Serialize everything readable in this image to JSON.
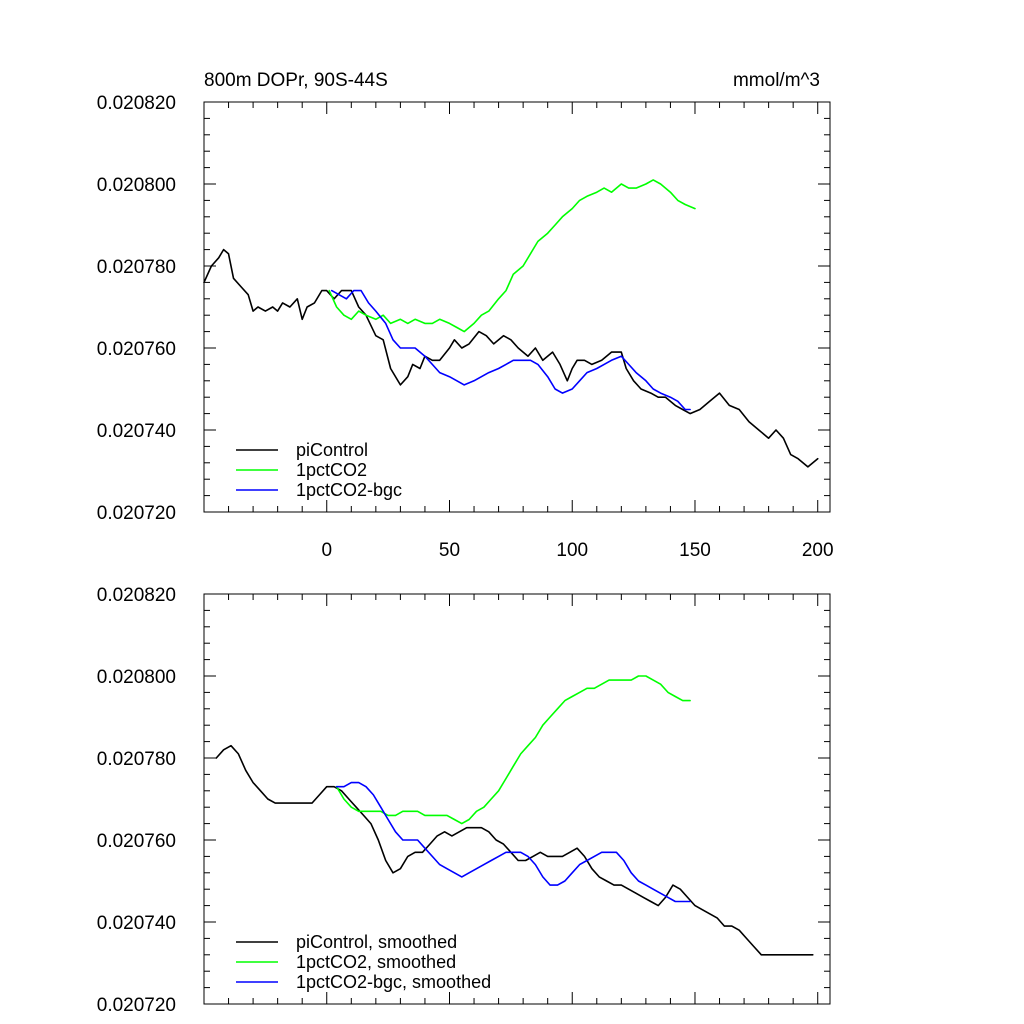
{
  "chart_data": [
    {
      "type": "line",
      "title_left": "800m DOPr, 90S-44S",
      "title_right": "mmol/m^3",
      "xlim": [
        -50,
        205
      ],
      "ylim": [
        0.02072,
        0.02082
      ],
      "x_ticks": [
        0,
        50,
        100,
        150,
        200
      ],
      "x_tick_labels": [
        "0",
        "50",
        "100",
        "150",
        "200"
      ],
      "y_ticks": [
        0.02072,
        0.02074,
        0.02076,
        0.02078,
        0.0208,
        0.02082
      ],
      "y_tick_labels": [
        "0.020720",
        "0.020740",
        "0.020760",
        "0.020780",
        "0.020800",
        "0.020820"
      ],
      "legend": [
        "piControl",
        "1pctCO2",
        "1pctCO2-bgc"
      ],
      "series": [
        {
          "name": "piControl",
          "color": "#000000",
          "x": [
            -50,
            -47,
            -44,
            -42,
            -40,
            -38,
            -35,
            -32,
            -30,
            -28,
            -25,
            -22,
            -20,
            -18,
            -15,
            -12,
            -10,
            -8,
            -5,
            -2,
            0,
            3,
            6,
            10,
            13,
            16,
            20,
            23,
            26,
            30,
            33,
            35,
            38,
            40,
            43,
            46,
            50,
            52,
            55,
            58,
            62,
            65,
            68,
            72,
            75,
            78,
            82,
            85,
            88,
            92,
            95,
            98,
            100,
            102,
            105,
            108,
            112,
            116,
            120,
            122,
            125,
            128,
            132,
            135,
            138,
            142,
            145,
            148,
            152,
            156,
            160,
            164,
            168,
            172,
            176,
            180,
            183,
            186,
            189,
            192,
            196,
            200
          ],
          "y": [
            0.020776,
            0.02078,
            0.020782,
            0.020784,
            0.020783,
            0.020777,
            0.020775,
            0.020773,
            0.020769,
            0.02077,
            0.020769,
            0.02077,
            0.020769,
            0.020771,
            0.02077,
            0.020772,
            0.020767,
            0.02077,
            0.020771,
            0.020774,
            0.020774,
            0.020772,
            0.020774,
            0.020774,
            0.02077,
            0.020768,
            0.020763,
            0.020762,
            0.020755,
            0.020751,
            0.020753,
            0.020756,
            0.020755,
            0.020758,
            0.020757,
            0.020757,
            0.02076,
            0.020762,
            0.02076,
            0.020761,
            0.020764,
            0.020763,
            0.020761,
            0.020763,
            0.020762,
            0.02076,
            0.020758,
            0.02076,
            0.020757,
            0.020759,
            0.020756,
            0.020752,
            0.020755,
            0.020757,
            0.020757,
            0.020756,
            0.020757,
            0.020759,
            0.020759,
            0.020755,
            0.020752,
            0.02075,
            0.020749,
            0.020748,
            0.020748,
            0.020746,
            0.020745,
            0.020744,
            0.020745,
            0.020747,
            0.020749,
            0.020746,
            0.020745,
            0.020742,
            0.02074,
            0.020738,
            0.02074,
            0.020738,
            0.020734,
            0.020733,
            0.020731,
            0.020733
          ]
        },
        {
          "name": "1pctCO2",
          "color": "#00ff00",
          "x": [
            1,
            4,
            7,
            10,
            13,
            16,
            20,
            23,
            26,
            30,
            33,
            36,
            40,
            43,
            46,
            50,
            53,
            56,
            60,
            63,
            66,
            70,
            73,
            76,
            80,
            83,
            86,
            90,
            93,
            96,
            100,
            103,
            106,
            110,
            113,
            116,
            120,
            123,
            126,
            130,
            133,
            136,
            140,
            143,
            146,
            150
          ],
          "y": [
            0.020774,
            0.02077,
            0.020768,
            0.020767,
            0.020769,
            0.020768,
            0.020767,
            0.020768,
            0.020766,
            0.020767,
            0.020766,
            0.020767,
            0.020766,
            0.020766,
            0.020767,
            0.020766,
            0.020765,
            0.020764,
            0.020766,
            0.020768,
            0.020769,
            0.020772,
            0.020774,
            0.020778,
            0.02078,
            0.020783,
            0.020786,
            0.020788,
            0.02079,
            0.020792,
            0.020794,
            0.020796,
            0.020797,
            0.020798,
            0.020799,
            0.020798,
            0.0208,
            0.020799,
            0.020799,
            0.0208,
            0.020801,
            0.0208,
            0.020798,
            0.020796,
            0.020795,
            0.020794
          ]
        },
        {
          "name": "1pctCO2-bgc",
          "color": "#0000ff",
          "x": [
            2,
            5,
            8,
            11,
            14,
            17,
            20,
            24,
            27,
            30,
            33,
            36,
            40,
            43,
            46,
            50,
            53,
            56,
            60,
            63,
            66,
            70,
            73,
            76,
            80,
            83,
            86,
            90,
            93,
            96,
            100,
            103,
            106,
            110,
            113,
            116,
            120,
            123,
            126,
            130,
            133,
            136,
            140,
            143,
            146,
            148
          ],
          "y": [
            0.020774,
            0.020773,
            0.020772,
            0.020774,
            0.020774,
            0.020771,
            0.020769,
            0.020766,
            0.020762,
            0.02076,
            0.02076,
            0.02076,
            0.020758,
            0.020756,
            0.020754,
            0.020753,
            0.020752,
            0.020751,
            0.020752,
            0.020753,
            0.020754,
            0.020755,
            0.020756,
            0.020757,
            0.020757,
            0.020757,
            0.020756,
            0.020753,
            0.02075,
            0.020749,
            0.02075,
            0.020752,
            0.020754,
            0.020755,
            0.020756,
            0.020757,
            0.020758,
            0.020756,
            0.020754,
            0.020752,
            0.02075,
            0.020749,
            0.020748,
            0.020747,
            0.020745,
            0.020745
          ]
        }
      ]
    },
    {
      "type": "line",
      "xlim": [
        -50,
        205
      ],
      "ylim": [
        0.02072,
        0.02082
      ],
      "x_ticks": [
        0,
        50,
        100,
        150,
        200
      ],
      "y_ticks": [
        0.02072,
        0.02074,
        0.02076,
        0.02078,
        0.0208,
        0.02082
      ],
      "y_tick_labels": [
        "0.020720",
        "0.020740",
        "0.020760",
        "0.020780",
        "0.020800",
        "0.020820"
      ],
      "legend": [
        "piControl, smoothed",
        "1pctCO2, smoothed",
        "1pctCO2-bgc, smoothed"
      ],
      "series": [
        {
          "name": "piControl, smoothed",
          "color": "#000000",
          "x": [
            -45,
            -42,
            -39,
            -36,
            -33,
            -30,
            -27,
            -24,
            -21,
            -18,
            -15,
            -12,
            -9,
            -6,
            -3,
            0,
            3,
            6,
            9,
            12,
            15,
            18,
            21,
            24,
            27,
            30,
            33,
            36,
            39,
            42,
            45,
            48,
            51,
            54,
            57,
            60,
            63,
            66,
            69,
            72,
            75,
            78,
            81,
            84,
            87,
            90,
            93,
            96,
            99,
            102,
            105,
            108,
            111,
            114,
            117,
            120,
            123,
            126,
            129,
            132,
            135,
            138,
            141,
            144,
            147,
            150,
            153,
            156,
            159,
            162,
            165,
            168,
            171,
            174,
            177,
            180,
            183,
            186,
            189,
            192,
            195,
            198
          ],
          "y": [
            0.02078,
            0.020782,
            0.020783,
            0.020781,
            0.020777,
            0.020774,
            0.020772,
            0.02077,
            0.020769,
            0.020769,
            0.020769,
            0.020769,
            0.020769,
            0.020769,
            0.020771,
            0.020773,
            0.020773,
            0.020772,
            0.02077,
            0.020768,
            0.020766,
            0.020764,
            0.02076,
            0.020755,
            0.020752,
            0.020753,
            0.020756,
            0.020757,
            0.020757,
            0.020759,
            0.020761,
            0.020762,
            0.020761,
            0.020762,
            0.020763,
            0.020763,
            0.020763,
            0.020762,
            0.02076,
            0.020759,
            0.020757,
            0.020755,
            0.020755,
            0.020756,
            0.020757,
            0.020756,
            0.020756,
            0.020756,
            0.020757,
            0.020758,
            0.020756,
            0.020753,
            0.020751,
            0.02075,
            0.020749,
            0.020749,
            0.020748,
            0.020747,
            0.020746,
            0.020745,
            0.020744,
            0.020746,
            0.020749,
            0.020748,
            0.020746,
            0.020744,
            0.020743,
            0.020742,
            0.020741,
            0.020739,
            0.020739,
            0.020738,
            0.020736,
            0.020734,
            0.020732,
            0.020732,
            0.020732,
            0.020732,
            0.020732,
            0.020732,
            0.020732,
            0.020732
          ]
        },
        {
          "name": "1pctCO2, smoothed",
          "color": "#00ff00",
          "x": [
            4,
            7,
            10,
            13,
            16,
            19,
            22,
            25,
            28,
            31,
            34,
            37,
            40,
            43,
            46,
            49,
            52,
            55,
            58,
            61,
            64,
            67,
            70,
            73,
            76,
            79,
            82,
            85,
            88,
            91,
            94,
            97,
            100,
            103,
            106,
            109,
            112,
            115,
            118,
            121,
            124,
            127,
            130,
            133,
            136,
            139,
            142,
            145,
            148
          ],
          "y": [
            0.020773,
            0.02077,
            0.020768,
            0.020767,
            0.020767,
            0.020767,
            0.020767,
            0.020766,
            0.020766,
            0.020767,
            0.020767,
            0.020767,
            0.020766,
            0.020766,
            0.020766,
            0.020766,
            0.020765,
            0.020764,
            0.020765,
            0.020767,
            0.020768,
            0.02077,
            0.020772,
            0.020775,
            0.020778,
            0.020781,
            0.020783,
            0.020785,
            0.020788,
            0.02079,
            0.020792,
            0.020794,
            0.020795,
            0.020796,
            0.020797,
            0.020797,
            0.020798,
            0.020799,
            0.020799,
            0.020799,
            0.020799,
            0.0208,
            0.0208,
            0.020799,
            0.020798,
            0.020796,
            0.020795,
            0.020794,
            0.020794
          ]
        },
        {
          "name": "1pctCO2-bgc, smoothed",
          "color": "#0000ff",
          "x": [
            4,
            7,
            10,
            13,
            16,
            19,
            22,
            25,
            28,
            31,
            34,
            37,
            40,
            43,
            46,
            49,
            52,
            55,
            58,
            61,
            64,
            67,
            70,
            73,
            76,
            79,
            82,
            85,
            88,
            91,
            94,
            97,
            100,
            103,
            106,
            109,
            112,
            115,
            118,
            121,
            124,
            127,
            130,
            133,
            136,
            139,
            142,
            145,
            148
          ],
          "y": [
            0.020773,
            0.020773,
            0.020774,
            0.020774,
            0.020773,
            0.020771,
            0.020768,
            0.020765,
            0.020762,
            0.02076,
            0.02076,
            0.02076,
            0.020758,
            0.020756,
            0.020754,
            0.020753,
            0.020752,
            0.020751,
            0.020752,
            0.020753,
            0.020754,
            0.020755,
            0.020756,
            0.020757,
            0.020757,
            0.020757,
            0.020756,
            0.020754,
            0.020751,
            0.020749,
            0.020749,
            0.02075,
            0.020752,
            0.020754,
            0.020755,
            0.020756,
            0.020757,
            0.020757,
            0.020757,
            0.020755,
            0.020752,
            0.02075,
            0.020749,
            0.020748,
            0.020747,
            0.020746,
            0.020745,
            0.020745,
            0.020745
          ]
        }
      ]
    }
  ]
}
